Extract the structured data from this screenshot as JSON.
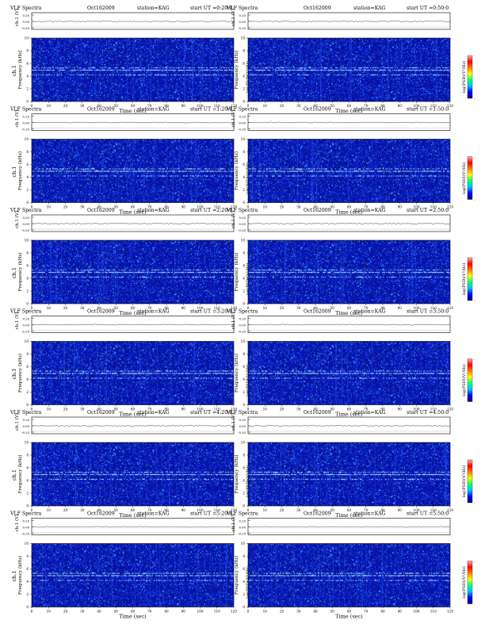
{
  "chart_data": {
    "type": "heatmap",
    "page_title": "VLF Spectra",
    "date": "Oct162009",
    "station": "station=KAG",
    "panels": [
      {
        "title": "VLF Spectra",
        "date": "Oct162009",
        "station": "station=KAG",
        "start": "start  UT =0:20:0",
        "channel_label": "ch.1"
      },
      {
        "title": "VLF Spectra",
        "date": "Oct162009",
        "station": "station=KAG",
        "start": "start  UT =0:50:0",
        "channel_label": ""
      },
      {
        "title": "VLF Spectra",
        "date": "Oct162009",
        "station": "station=KAG",
        "start": "start  UT =1:20:0",
        "channel_label": "ch.1"
      },
      {
        "title": "VLF Spectra",
        "date": "Oct162009",
        "station": "station=KAG",
        "start": "start  UT =1:50:0",
        "channel_label": ""
      },
      {
        "title": "VLF Spectra",
        "date": "Oct162009",
        "station": "station=KAG",
        "start": "start  UT =2:20:0",
        "channel_label": "ch.1"
      },
      {
        "title": "VLF Spectra",
        "date": "Oct162009",
        "station": "station=KAG",
        "start": "start  UT =2:50:0",
        "channel_label": ""
      },
      {
        "title": "VLF Spectra",
        "date": "Oct162009",
        "station": "station=KAG",
        "start": "start  UT =3:20:0",
        "channel_label": "ch.1"
      },
      {
        "title": "VLF Spectra",
        "date": "Oct162009",
        "station": "station=KAG",
        "start": "start  UT =3:50:0",
        "channel_label": ""
      },
      {
        "title": "VLF Spectra",
        "date": "Oct162009",
        "station": "station=KAG",
        "start": "start  UT =4:20:0",
        "channel_label": "ch.1"
      },
      {
        "title": "VLF Spectra",
        "date": "Oct162009",
        "station": "station=KAG",
        "start": "start  UT =4:50:0",
        "channel_label": ""
      },
      {
        "title": "VLF Spectra",
        "date": "Oct162009",
        "station": "station=KAG",
        "start": "start  UT =5:20:0",
        "channel_label": "ch.1"
      },
      {
        "title": "VLF Spectra",
        "date": "Oct162009",
        "station": "station=KAG",
        "start": "start  UT =5:50:0",
        "channel_label": ""
      }
    ],
    "amplitude_axis": {
      "label": "ch.1 (V)",
      "ticks": [
        "0.20",
        "0.00",
        "-0.20"
      ]
    },
    "xlabel": "Time (sec)",
    "ylabel": "Frequency (kHz)",
    "x_ticks": [
      0,
      10,
      20,
      30,
      40,
      50,
      60,
      70,
      80,
      90,
      100,
      110,
      120
    ],
    "xlim": [
      0,
      120
    ],
    "y_ticks": [
      0,
      2,
      4,
      6,
      8,
      10
    ],
    "ylim": [
      0,
      10
    ],
    "colorbar_label": "log(PSD)(V²/Hz)",
    "colorbar_ticks": [
      "-",
      "-",
      "-"
    ],
    "colormap": [
      "#00007f",
      "#0000ff",
      "#00bfff",
      "#00ff80",
      "#ffff00",
      "#ff7f00",
      "#ff0000",
      "#ffb0b0"
    ],
    "features": {
      "background_color": "#0a14b4",
      "emission_line_khz": 5.0,
      "emission_band_khz": [
        4.2,
        5.4
      ]
    }
  }
}
